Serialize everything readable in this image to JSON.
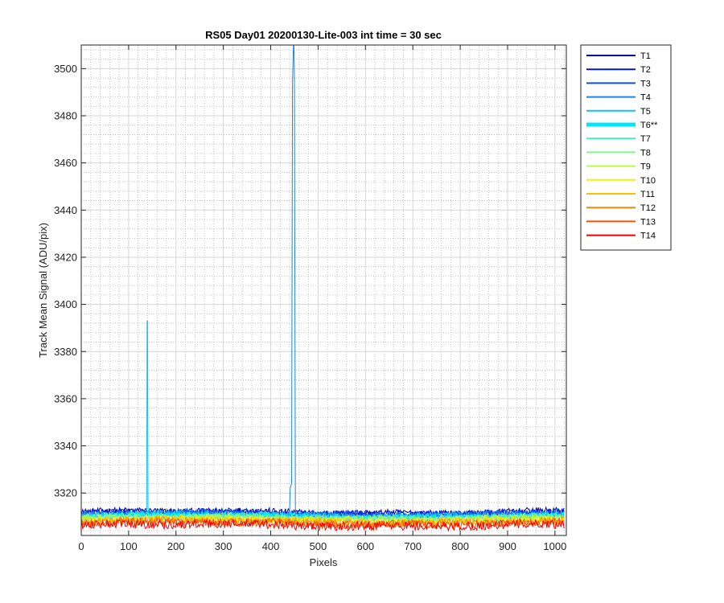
{
  "chart_data": {
    "type": "line",
    "title": "RS05 Day01 20200130-Lite-003 int time = 30 sec",
    "xlabel": "Pixels",
    "ylabel": "Track Mean Signal (ADU/pix)",
    "xlim": [
      0,
      1024
    ],
    "ylim": [
      3302,
      3510
    ],
    "xticks": [
      0,
      100,
      200,
      300,
      400,
      500,
      600,
      700,
      800,
      900,
      1000
    ],
    "yticks": [
      3320,
      3340,
      3360,
      3380,
      3400,
      3420,
      3440,
      3460,
      3480,
      3500
    ],
    "xtick_labels": [
      "0",
      "100",
      "200",
      "300",
      "400",
      "500",
      "600",
      "700",
      "800",
      "900",
      "1000"
    ],
    "ytick_labels": [
      "3320",
      "3340",
      "3360",
      "3380",
      "3400",
      "3420",
      "3440",
      "3460",
      "3480",
      "3500"
    ],
    "grid": true,
    "minor_grid": true,
    "legend_position": "outside-right",
    "series": [
      {
        "name": "T1",
        "color": "#0000aa",
        "baseline": 3312.0,
        "noise": 1.3
      },
      {
        "name": "T2",
        "color": "#0018dd",
        "baseline": 3311.6,
        "noise": 1.3
      },
      {
        "name": "T3",
        "color": "#0a4ee8",
        "baseline": 3311.3,
        "noise": 1.3
      },
      {
        "name": "T4",
        "color": "#1a86e0",
        "baseline": 3310.9,
        "noise": 1.3
      },
      {
        "name": "T5",
        "color": "#10c0f0",
        "baseline": 3310.6,
        "noise": 1.3
      },
      {
        "name": "T6**",
        "color": "#00e8f8",
        "baseline": 3310.2,
        "noise": 1.3,
        "bold": true
      },
      {
        "name": "T7",
        "color": "#40f0c0",
        "baseline": 3309.9,
        "noise": 1.3
      },
      {
        "name": "T8",
        "color": "#80f890",
        "baseline": 3309.5,
        "noise": 1.3
      },
      {
        "name": "T9",
        "color": "#c0f840",
        "baseline": 3309.1,
        "noise": 1.4
      },
      {
        "name": "T10",
        "color": "#f8f000",
        "baseline": 3308.7,
        "noise": 1.4
      },
      {
        "name": "T11",
        "color": "#f8c000",
        "baseline": 3308.2,
        "noise": 1.5
      },
      {
        "name": "T12",
        "color": "#f88800",
        "baseline": 3307.7,
        "noise": 1.6
      },
      {
        "name": "T13",
        "color": "#f85000",
        "baseline": 3307.1,
        "noise": 1.7
      },
      {
        "name": "T14",
        "color": "#f00000",
        "baseline": 3306.4,
        "noise": 1.9
      }
    ],
    "spikes": [
      {
        "series": "T5",
        "x": [
          138,
          139,
          140,
          141,
          142
        ],
        "y": [
          3312,
          3393,
          3393,
          3314,
          3311
        ]
      },
      {
        "series": "T4",
        "x": [
          440,
          441,
          444,
          446,
          448,
          449,
          450,
          452
        ],
        "y": [
          3313,
          3322,
          3324,
          3494,
          3510,
          3510,
          3495,
          3314
        ]
      }
    ]
  }
}
